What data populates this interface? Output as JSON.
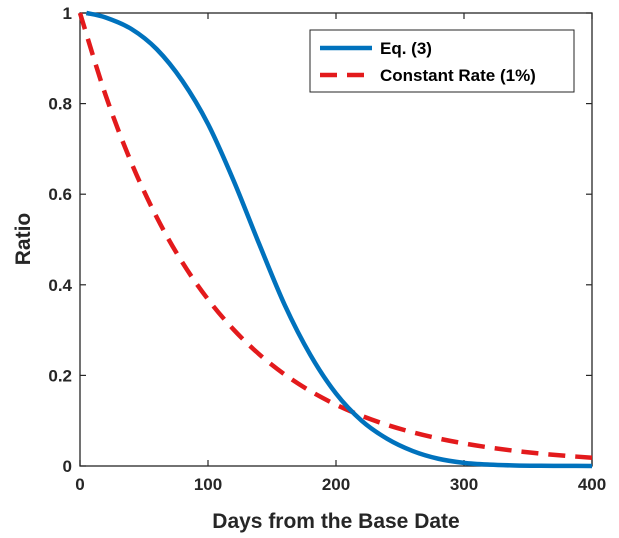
{
  "chart_data": {
    "type": "line",
    "title": "",
    "xlabel": "Days from the Base Date",
    "ylabel": "Ratio",
    "xlim": [
      0,
      400
    ],
    "ylim": [
      0,
      1
    ],
    "xticks": [
      0,
      100,
      200,
      300,
      400
    ],
    "yticks": [
      0,
      0.2,
      0.4,
      0.6,
      0.8,
      1
    ],
    "xtick_labels": [
      "0",
      "100",
      "200",
      "300",
      "400"
    ],
    "ytick_labels": [
      "0",
      "0.2",
      "0.4",
      "0.6",
      "0.8",
      "1"
    ],
    "grid": false,
    "legend_position": "top-right",
    "series": [
      {
        "name": "Eq. (3)",
        "color": "#0072BD",
        "style": "solid",
        "x": [
          5,
          20,
          40,
          60,
          80,
          100,
          120,
          140,
          160,
          180,
          200,
          220,
          240,
          260,
          280,
          300,
          320,
          340,
          360,
          380,
          400
        ],
        "y": [
          1.0,
          0.99,
          0.965,
          0.92,
          0.85,
          0.755,
          0.63,
          0.49,
          0.355,
          0.245,
          0.16,
          0.1,
          0.06,
          0.033,
          0.016,
          0.007,
          0.003,
          0.0012,
          0.0005,
          0.0002,
          0.0001
        ]
      },
      {
        "name": "Constant Rate (1%)",
        "color": "#E31A1C",
        "style": "dashed",
        "x": [
          0,
          20,
          40,
          60,
          80,
          100,
          120,
          140,
          160,
          180,
          200,
          220,
          240,
          260,
          280,
          300,
          320,
          340,
          360,
          380,
          400
        ],
        "y": [
          1.0,
          0.8187,
          0.6703,
          0.5488,
          0.4493,
          0.3679,
          0.3012,
          0.2466,
          0.2019,
          0.1653,
          0.1353,
          0.1108,
          0.0907,
          0.0743,
          0.0608,
          0.0498,
          0.0408,
          0.0334,
          0.0273,
          0.0224,
          0.0183
        ]
      }
    ]
  }
}
